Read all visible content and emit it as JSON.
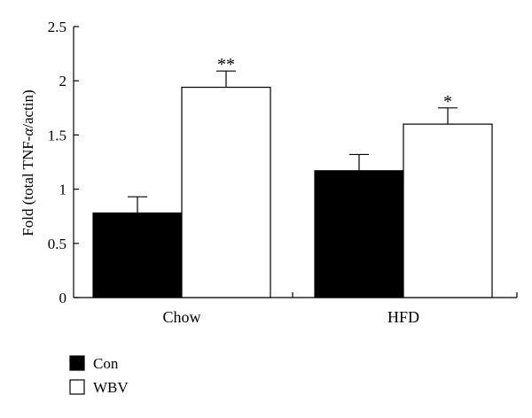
{
  "chart_data": {
    "type": "bar",
    "categories": [
      "Chow",
      "HFD"
    ],
    "series": [
      {
        "name": "Con",
        "color": "#000000",
        "values": [
          0.78,
          1.17
        ],
        "errors": [
          0.15,
          0.15
        ],
        "significance": [
          "",
          ""
        ]
      },
      {
        "name": "WBV",
        "color": "#ffffff",
        "values": [
          1.94,
          1.6
        ],
        "errors": [
          0.15,
          0.15
        ],
        "significance": [
          "**",
          "*"
        ]
      }
    ],
    "ylabel_prefix": "Fold (total TNF-",
    "ylabel_symbol": "α",
    "ylabel_suffix": "/actin)",
    "ylim": [
      0,
      2.5
    ],
    "yticks": [
      0,
      0.5,
      1,
      1.5,
      2,
      2.5
    ],
    "ytick_labels": [
      "0",
      "0.5",
      "1",
      "1.5",
      "2",
      "2.5"
    ],
    "grid": false,
    "legend_position": "bottom-left"
  }
}
